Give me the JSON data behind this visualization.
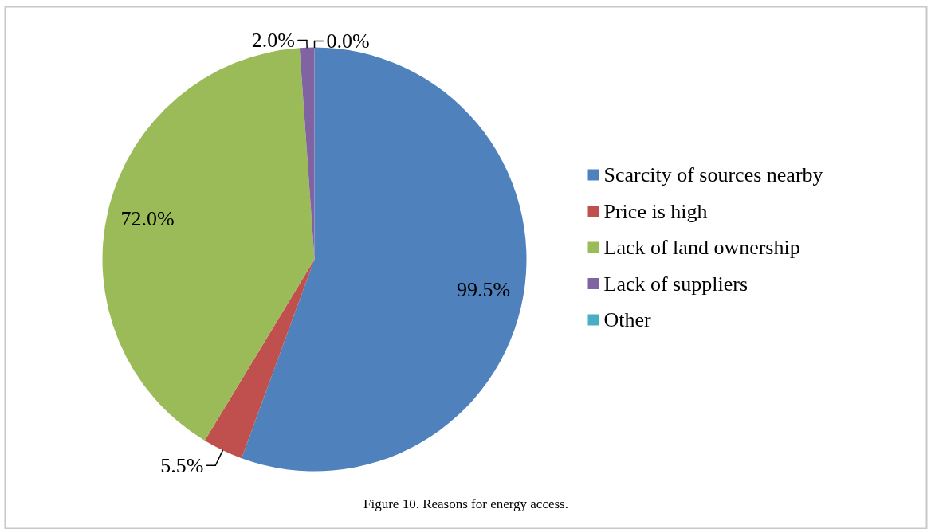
{
  "chart_data": {
    "type": "pie",
    "categories": [
      "Scarcity of sources nearby",
      "Price is high",
      "Lack of land ownership",
      "Lack of suppliers",
      "Other"
    ],
    "values": [
      99.5,
      5.5,
      72.0,
      2.0,
      0.0
    ],
    "colors": [
      "#4f81bd",
      "#c0504d",
      "#9bbb59",
      "#8064a2",
      "#4bacc6"
    ],
    "value_labels": [
      "99.5%",
      "5.5%",
      "72.0%",
      "2.0%",
      "0.0%"
    ],
    "legend": "right",
    "annotations": [
      "Figure 10. Reasons for energy access."
    ]
  }
}
